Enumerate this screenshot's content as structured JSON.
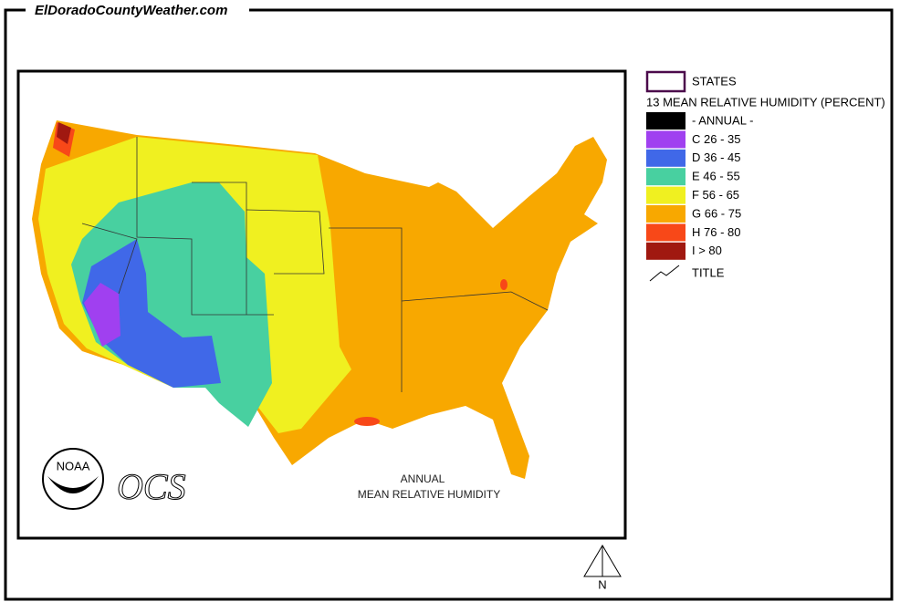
{
  "header": {
    "site": "ElDoradoCountyWeather.com"
  },
  "map": {
    "caption": [
      "ANNUAL",
      "MEAN  RELATIVE HUMIDITY"
    ],
    "logo": "NOAA",
    "agency": "OCS",
    "north": "N"
  },
  "legend": {
    "states": "STATES",
    "layer": "13 MEAN RELATIVE HUMIDITY (PERCENT)",
    "classes": [
      {
        "label": "- ANNUAL -",
        "color": "#000000"
      },
      {
        "label": "C 26 - 35",
        "color": "#a040f0"
      },
      {
        "label": "D 36 - 45",
        "color": "#4068e8"
      },
      {
        "label": "E 46 - 55",
        "color": "#48d0a0"
      },
      {
        "label": "F 56 - 65",
        "color": "#f0f020"
      },
      {
        "label": "G 66 - 75",
        "color": "#f8a800"
      },
      {
        "label": "H 76 - 80",
        "color": "#f84818"
      },
      {
        "label": "I > 80",
        "color": "#a01810"
      }
    ],
    "title": "TITLE"
  }
}
